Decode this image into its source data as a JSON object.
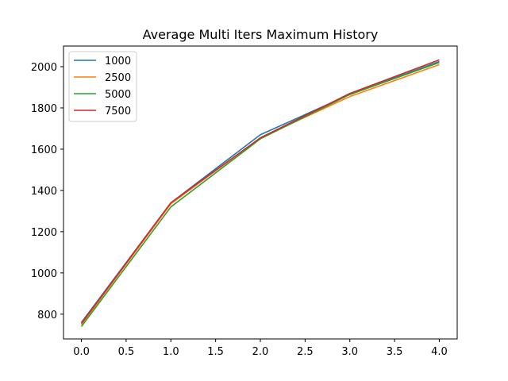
{
  "chart_data": {
    "type": "line",
    "title": "Average Multi Iters Maximum History",
    "xlabel": "",
    "ylabel": "",
    "x": [
      0,
      1,
      2,
      3,
      4
    ],
    "xlim": [
      -0.2,
      4.2
    ],
    "ylim": [
      680,
      2100
    ],
    "xticks": [
      "0.0",
      "0.5",
      "1.0",
      "1.5",
      "2.0",
      "2.5",
      "3.0",
      "3.5",
      "4.0"
    ],
    "yticks": [
      "800",
      "1000",
      "1200",
      "1400",
      "1600",
      "1800",
      "2000"
    ],
    "grid": false,
    "legend_position": "top-left",
    "series": [
      {
        "name": "1000",
        "color": "#1f77b4",
        "values": [
          760,
          1340,
          1670,
          1865,
          2025
        ]
      },
      {
        "name": "2500",
        "color": "#ff7f0e",
        "values": [
          750,
          1335,
          1655,
          1855,
          2010
        ]
      },
      {
        "name": "5000",
        "color": "#2ca02c",
        "values": [
          740,
          1320,
          1650,
          1865,
          2020
        ]
      },
      {
        "name": "7500",
        "color": "#d62728",
        "values": [
          755,
          1340,
          1655,
          1870,
          2033
        ]
      }
    ]
  }
}
